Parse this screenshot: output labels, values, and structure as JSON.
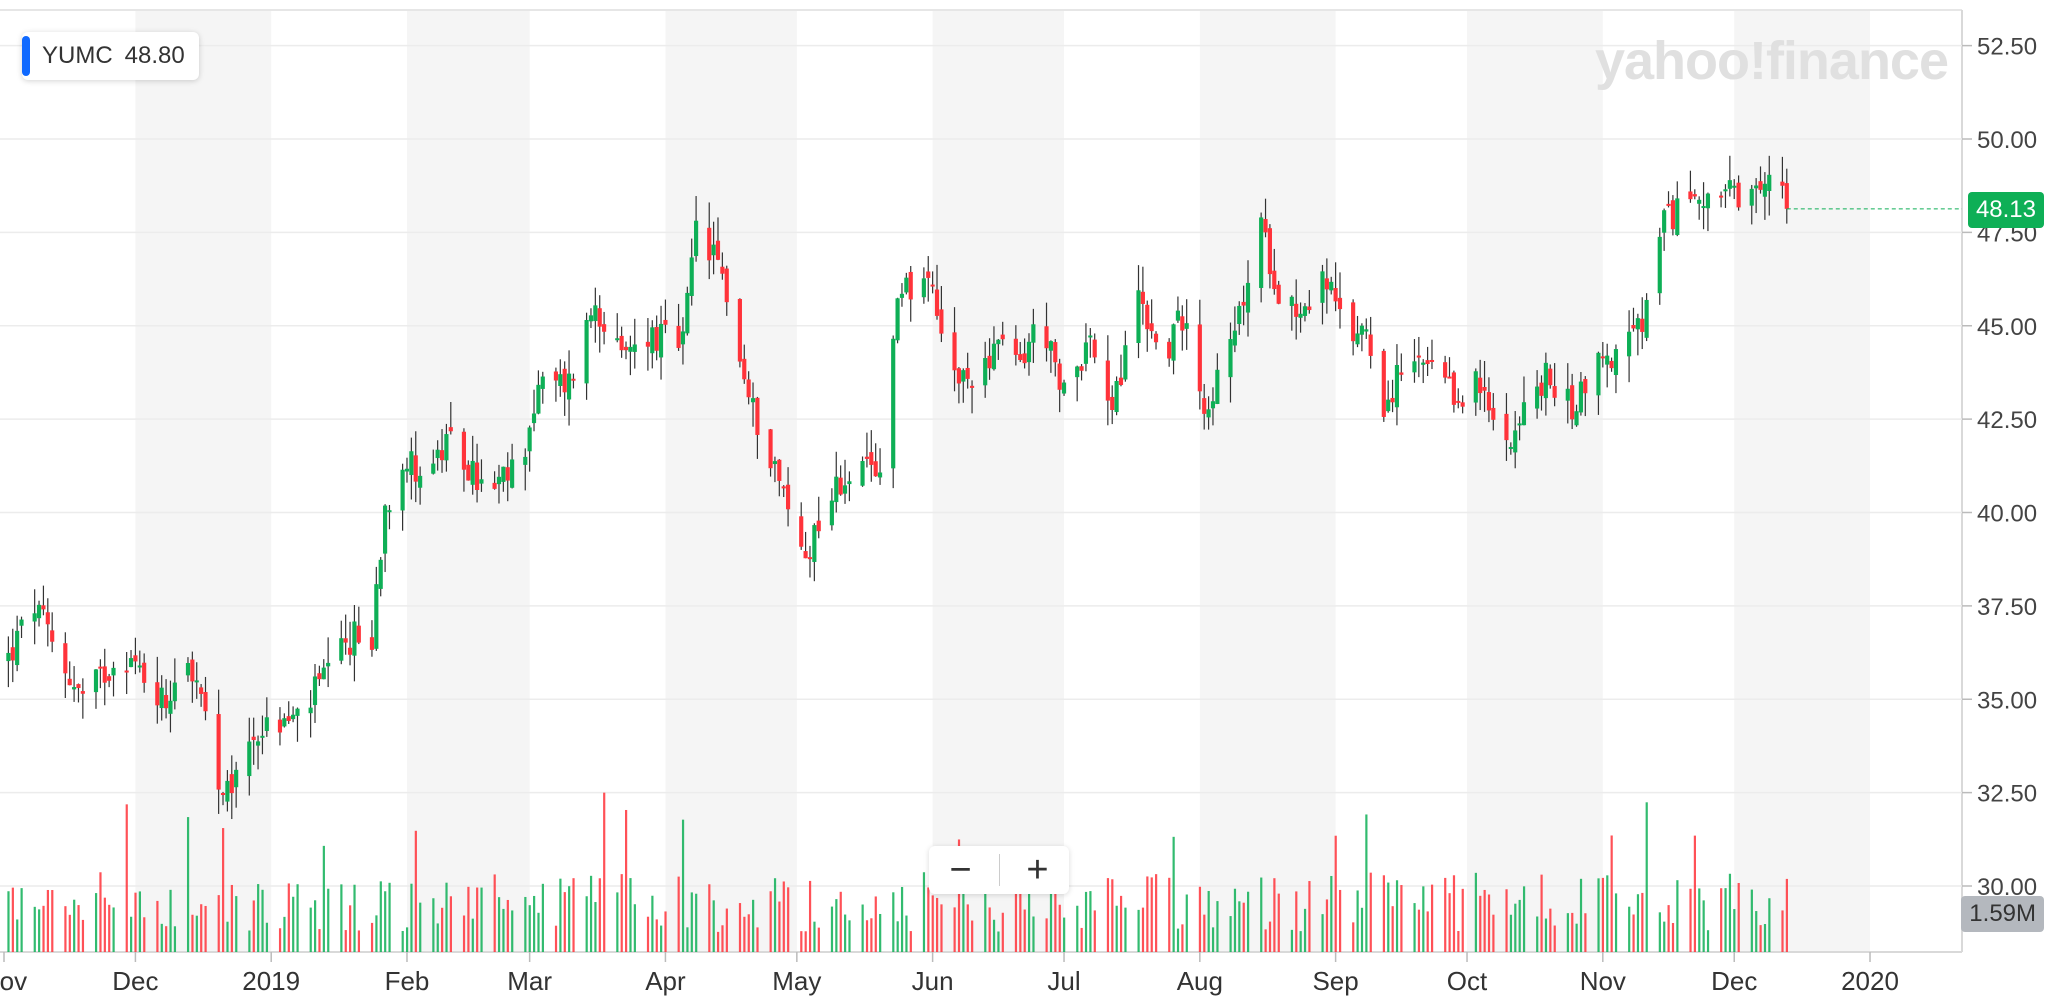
{
  "legend": {
    "symbol": "YUMC",
    "value": "48.80",
    "accent": "#0f69ff"
  },
  "logo_text": "yahoo!finance",
  "zoom": {
    "minus": "−",
    "plus": "+"
  },
  "price_tag": {
    "label": "48.13",
    "color": "#0eaf56"
  },
  "volume_tag": {
    "label": "1.59M",
    "color": "#b4b8be"
  },
  "chart_data": {
    "type": "candlestick",
    "title": "",
    "xlabel": "",
    "ylabel": "",
    "ylim": [
      29.5,
      53.25
    ],
    "y_ticks": [
      "52.50",
      "50.00",
      "47.50",
      "45.00",
      "42.50",
      "40.00",
      "37.50",
      "35.00",
      "32.50",
      "30.00"
    ],
    "y_tick_values": [
      52.5,
      50,
      47.5,
      45,
      42.5,
      40,
      37.5,
      35,
      32.5,
      30
    ],
    "x_labels": [
      "Nov",
      "Dec",
      "2019",
      "Feb",
      "Mar",
      "Apr",
      "May",
      "Jun",
      "Jul",
      "Aug",
      "Sep",
      "Oct",
      "Nov",
      "Dec",
      "2020"
    ],
    "x_label_days": [
      0,
      30,
      61,
      92,
      120,
      151,
      181,
      212,
      242,
      273,
      304,
      334,
      365,
      395,
      426
    ],
    "x_range_days": [
      0,
      447
    ],
    "grid": true,
    "up_color": "#0eaf56",
    "down_color": "#ff333a",
    "ohlc_keypoints": [
      {
        "d": 1,
        "close": 36.1
      },
      {
        "d": 7,
        "close": 37.5
      },
      {
        "d": 12,
        "close": 36.2
      },
      {
        "d": 18,
        "close": 35.0
      },
      {
        "d": 27,
        "close": 36.3
      },
      {
        "d": 32,
        "close": 35.6
      },
      {
        "d": 37,
        "close": 34.9
      },
      {
        "d": 41,
        "close": 36.5
      },
      {
        "d": 46,
        "close": 34.5
      },
      {
        "d": 48,
        "close": 32.9
      },
      {
        "d": 50,
        "close": 32.1
      },
      {
        "d": 57,
        "close": 34.1
      },
      {
        "d": 67,
        "close": 34.5
      },
      {
        "d": 74,
        "close": 35.7
      },
      {
        "d": 80,
        "close": 36.7
      },
      {
        "d": 84,
        "close": 36.4
      },
      {
        "d": 85,
        "close": 38.0
      },
      {
        "d": 87,
        "close": 40.2
      },
      {
        "d": 91,
        "close": 41.4
      },
      {
        "d": 96,
        "close": 41.1
      },
      {
        "d": 102,
        "close": 41.8
      },
      {
        "d": 111,
        "close": 40.4
      },
      {
        "d": 118,
        "close": 41.4
      },
      {
        "d": 122,
        "close": 43.3
      },
      {
        "d": 129,
        "close": 43.5
      },
      {
        "d": 135,
        "close": 45.7
      },
      {
        "d": 141,
        "close": 44.0
      },
      {
        "d": 146,
        "close": 44.8
      },
      {
        "d": 155,
        "close": 44.5
      },
      {
        "d": 158,
        "close": 47.6
      },
      {
        "d": 164,
        "close": 46.4
      },
      {
        "d": 170,
        "close": 43.0
      },
      {
        "d": 176,
        "close": 41.3
      },
      {
        "d": 180,
        "close": 39.6
      },
      {
        "d": 183,
        "close": 38.8
      },
      {
        "d": 187,
        "close": 40.2
      },
      {
        "d": 193,
        "close": 41.1
      },
      {
        "d": 200,
        "close": 41.0
      },
      {
        "d": 202,
        "close": 44.5
      },
      {
        "d": 205,
        "close": 46.2
      },
      {
        "d": 212,
        "close": 45.8
      },
      {
        "d": 215,
        "close": 44.0
      },
      {
        "d": 219,
        "close": 43.4
      },
      {
        "d": 226,
        "close": 44.4
      },
      {
        "d": 232,
        "close": 44.0
      },
      {
        "d": 237,
        "close": 45.3
      },
      {
        "d": 241,
        "close": 43.1
      },
      {
        "d": 248,
        "close": 44.7
      },
      {
        "d": 252,
        "close": 42.6
      },
      {
        "d": 255,
        "close": 43.6
      },
      {
        "d": 259,
        "close": 46.0
      },
      {
        "d": 264,
        "close": 44.0
      },
      {
        "d": 270,
        "close": 45.5
      },
      {
        "d": 274,
        "close": 42.8
      },
      {
        "d": 280,
        "close": 44.3
      },
      {
        "d": 287,
        "close": 47.6
      },
      {
        "d": 291,
        "close": 46.0
      },
      {
        "d": 296,
        "close": 45.4
      },
      {
        "d": 302,
        "close": 46.3
      },
      {
        "d": 306,
        "close": 44.6
      },
      {
        "d": 311,
        "close": 45.0
      },
      {
        "d": 315,
        "close": 42.9
      },
      {
        "d": 320,
        "close": 43.9
      },
      {
        "d": 326,
        "close": 43.8
      },
      {
        "d": 331,
        "close": 43.0
      },
      {
        "d": 336,
        "close": 43.5
      },
      {
        "d": 342,
        "close": 41.9
      },
      {
        "d": 346,
        "close": 42.5
      },
      {
        "d": 352,
        "close": 43.6
      },
      {
        "d": 358,
        "close": 42.8
      },
      {
        "d": 363,
        "close": 44.0
      },
      {
        "d": 368,
        "close": 44.2
      },
      {
        "d": 374,
        "close": 45.0
      },
      {
        "d": 379,
        "close": 47.7
      },
      {
        "d": 384,
        "close": 48.4
      },
      {
        "d": 389,
        "close": 48.6
      },
      {
        "d": 394,
        "close": 48.5
      },
      {
        "d": 397,
        "close": 48.0
      },
      {
        "d": 402,
        "close": 48.6
      },
      {
        "d": 405,
        "close": 49.6
      },
      {
        "d": 407,
        "close": 48.13
      }
    ]
  }
}
